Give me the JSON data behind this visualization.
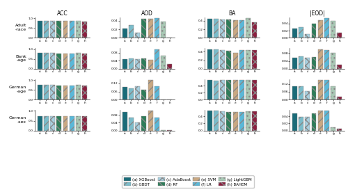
{
  "col_labels": [
    "ACC",
    "AOD",
    "BA",
    "|EOD|"
  ],
  "row_labels": [
    "Adult\n-race",
    "Bank\n-age",
    "German\n-age",
    "German\n-sex"
  ],
  "tick_labels": [
    "a",
    "b",
    "c",
    "d",
    "e",
    "f",
    "g",
    "h"
  ],
  "legend_entries": [
    {
      "label": "(a) XGBoost",
      "color": "#1a6b78",
      "hatch": ""
    },
    {
      "label": "(b) GBDT",
      "color": "#7bbcca",
      "hatch": "///"
    },
    {
      "label": "(c) AdaBoost",
      "color": "#a8d0e0",
      "hatch": "xxx"
    },
    {
      "label": "(d) RF",
      "color": "#2e7d5a",
      "hatch": "\\\\\\"
    },
    {
      "label": "(e) SVM",
      "color": "#c9a882",
      "hatch": "///"
    },
    {
      "label": "(f) LR",
      "color": "#5ab8d8",
      "hatch": "///"
    },
    {
      "label": "(g) LightGBM",
      "color": "#a8c8b4",
      "hatch": "..."
    },
    {
      "label": "(h) BAHEM",
      "color": "#8b2040",
      "hatch": "xxx"
    }
  ],
  "ACC": {
    "Adult-race": [
      0.87,
      0.87,
      0.87,
      0.87,
      0.85,
      0.85,
      0.87,
      0.82
    ],
    "Bank-age": [
      0.8,
      0.8,
      0.8,
      0.79,
      0.79,
      0.79,
      0.8,
      0.79
    ],
    "German-age": [
      0.74,
      0.74,
      0.74,
      0.73,
      0.72,
      0.73,
      0.74,
      0.73
    ],
    "German-sex": [
      0.75,
      0.75,
      0.75,
      0.74,
      0.75,
      0.73,
      0.75,
      0.75
    ]
  },
  "AOD": {
    "Adult-race": [
      0.022,
      0.03,
      0.012,
      0.044,
      0.044,
      0.046,
      0.038,
      0.001
    ],
    "Bank-age": [
      0.048,
      0.05,
      0.049,
      0.05,
      0.046,
      0.098,
      0.066,
      0.025
    ],
    "German-age": [
      0.095,
      0.082,
      0.1,
      0.072,
      0.145,
      0.098,
      0.003,
      0.003
    ],
    "German-sex": [
      0.093,
      0.068,
      0.04,
      0.075,
      0.1,
      0.068,
      0.002,
      0.002
    ]
  },
  "BA": {
    "Adult-race": [
      0.44,
      0.44,
      0.43,
      0.43,
      0.41,
      0.42,
      0.46,
      0.37
    ],
    "Bank-age": [
      0.46,
      0.46,
      0.44,
      0.42,
      0.37,
      0.43,
      0.43,
      0.43
    ],
    "German-age": [
      0.57,
      0.56,
      0.57,
      0.57,
      0.57,
      0.57,
      0.57,
      0.57
    ],
    "German-sex": [
      0.55,
      0.55,
      0.54,
      0.53,
      0.53,
      0.52,
      0.54,
      0.54
    ]
  },
  "IEODI": {
    "Adult-race": [
      0.027,
      0.03,
      0.01,
      0.04,
      0.05,
      0.055,
      0.047,
      0.015
    ],
    "Bank-age": [
      0.055,
      0.065,
      0.057,
      0.06,
      0.1,
      0.095,
      0.082,
      0.02
    ],
    "German-age": [
      0.105,
      0.1,
      0.065,
      0.1,
      0.15,
      0.15,
      0.105,
      0.025
    ],
    "German-sex": [
      0.048,
      0.038,
      0.038,
      0.048,
      0.055,
      0.055,
      0.01,
      0.005
    ]
  },
  "ylims": {
    "ACC": [
      0,
      1.0
    ],
    "AOD": [
      0,
      null
    ],
    "BA": [
      0,
      null
    ],
    "IEODI": [
      0,
      null
    ]
  },
  "yticks": {
    "ACC": [
      0.0,
      0.5,
      1.0
    ],
    "AOD": null,
    "BA": null,
    "IEODI": null
  }
}
